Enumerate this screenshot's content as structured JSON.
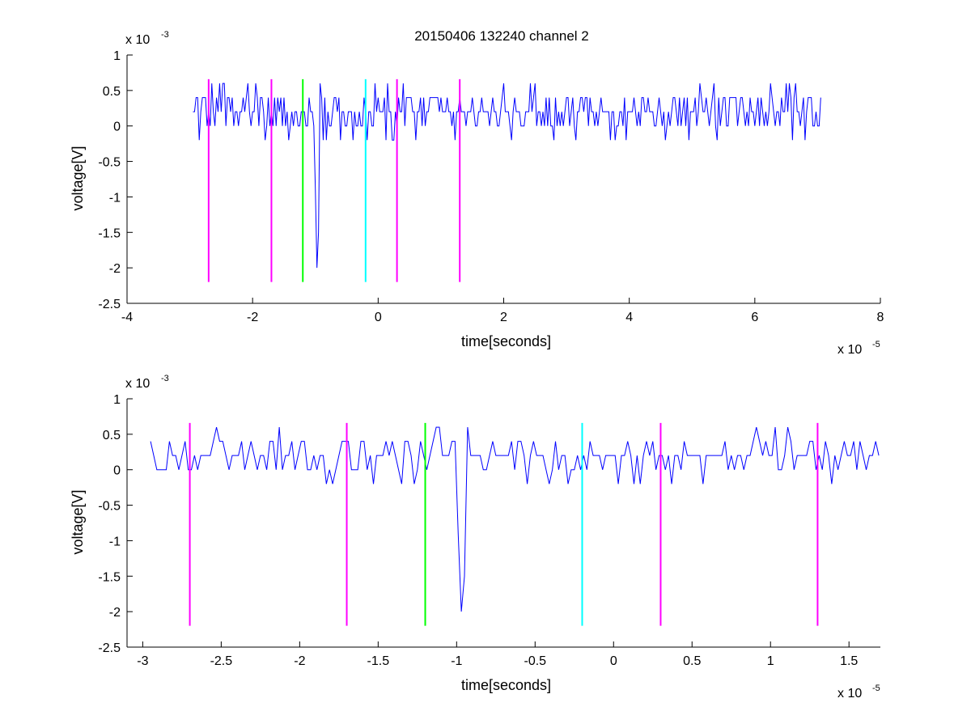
{
  "title": "20150406 132240 channel 2",
  "colors": {
    "signal": "#0000ff",
    "magenta": "#ff00ff",
    "green": "#00ff00",
    "cyan": "#00ffff",
    "axis": "#000000",
    "background": "#ffffff"
  },
  "chart_data": [
    {
      "type": "line",
      "title": "20150406 132240 channel 2",
      "xlabel": "time[seconds]",
      "ylabel": "voltage[V]",
      "x_multiplier_label": "x 10",
      "x_multiplier_exponent": "-5",
      "y_multiplier_label": "x 10",
      "y_multiplier_exponent": "-3",
      "xlim": [
        -4,
        8
      ],
      "ylim": [
        -2.5,
        1
      ],
      "x_ticks": [
        -4,
        -2,
        0,
        2,
        4,
        6,
        8
      ],
      "x_tick_labels": [
        "-4",
        "-2",
        "0",
        "2",
        "4",
        "6",
        "8"
      ],
      "y_ticks": [
        -2.5,
        -2,
        -1.5,
        -1,
        -0.5,
        0,
        0.5,
        1
      ],
      "y_tick_labels": [
        "-2.5",
        "-2",
        "-1.5",
        "-1",
        "-0.5",
        "0",
        "0.5",
        "1"
      ],
      "grid": false,
      "signal": {
        "x_range": [
          -2.95,
          7.05
        ],
        "baseline": 0.2,
        "noise_levels": [
          -0.2,
          0,
          0.2,
          0.4,
          0.6
        ],
        "spike": {
          "x": -0.97,
          "y": -2.0
        }
      },
      "markers": [
        {
          "x": -2.7,
          "color": "magenta",
          "y_range": [
            -2.2,
            0.66
          ]
        },
        {
          "x": -1.7,
          "color": "magenta",
          "y_range": [
            -2.2,
            0.66
          ]
        },
        {
          "x": -1.2,
          "color": "green",
          "y_range": [
            -2.2,
            0.66
          ]
        },
        {
          "x": -0.2,
          "color": "cyan",
          "y_range": [
            -2.2,
            0.66
          ]
        },
        {
          "x": 0.3,
          "color": "magenta",
          "y_range": [
            -2.2,
            0.66
          ]
        },
        {
          "x": 1.3,
          "color": "magenta",
          "y_range": [
            -2.2,
            0.66
          ]
        }
      ]
    },
    {
      "type": "line",
      "title": "",
      "xlabel": "time[seconds]",
      "ylabel": "voltage[V]",
      "x_multiplier_label": "x 10",
      "x_multiplier_exponent": "-5",
      "y_multiplier_label": "x 10",
      "y_multiplier_exponent": "-3",
      "xlim": [
        -3.1,
        1.7
      ],
      "ylim": [
        -2.5,
        1
      ],
      "x_ticks": [
        -3,
        -2.5,
        -2,
        -1.5,
        -1,
        -0.5,
        0,
        0.5,
        1,
        1.5
      ],
      "x_tick_labels": [
        "-3",
        "-2.5",
        "-2",
        "-1.5",
        "-1",
        "-0.5",
        "0",
        "0.5",
        "1",
        "1.5"
      ],
      "y_ticks": [
        -2.5,
        -2,
        -1.5,
        -1,
        -0.5,
        0,
        0.5,
        1
      ],
      "y_tick_labels": [
        "-2.5",
        "-2",
        "-1.5",
        "-1",
        "-0.5",
        "0",
        "0.5",
        "1"
      ],
      "grid": false,
      "signal": {
        "x_range": [
          -2.95,
          1.7
        ],
        "baseline": 0.2,
        "noise_levels": [
          -0.2,
          0,
          0.2,
          0.4,
          0.6
        ],
        "spike": {
          "x": -0.97,
          "y": -2.0
        }
      },
      "markers": [
        {
          "x": -2.7,
          "color": "magenta",
          "y_range": [
            -2.2,
            0.66
          ]
        },
        {
          "x": -1.7,
          "color": "magenta",
          "y_range": [
            -2.2,
            0.66
          ]
        },
        {
          "x": -1.2,
          "color": "green",
          "y_range": [
            -2.2,
            0.66
          ]
        },
        {
          "x": -0.2,
          "color": "cyan",
          "y_range": [
            -2.2,
            0.66
          ]
        },
        {
          "x": 0.3,
          "color": "magenta",
          "y_range": [
            -2.2,
            0.66
          ]
        },
        {
          "x": 1.3,
          "color": "magenta",
          "y_range": [
            -2.2,
            0.66
          ]
        }
      ]
    }
  ]
}
